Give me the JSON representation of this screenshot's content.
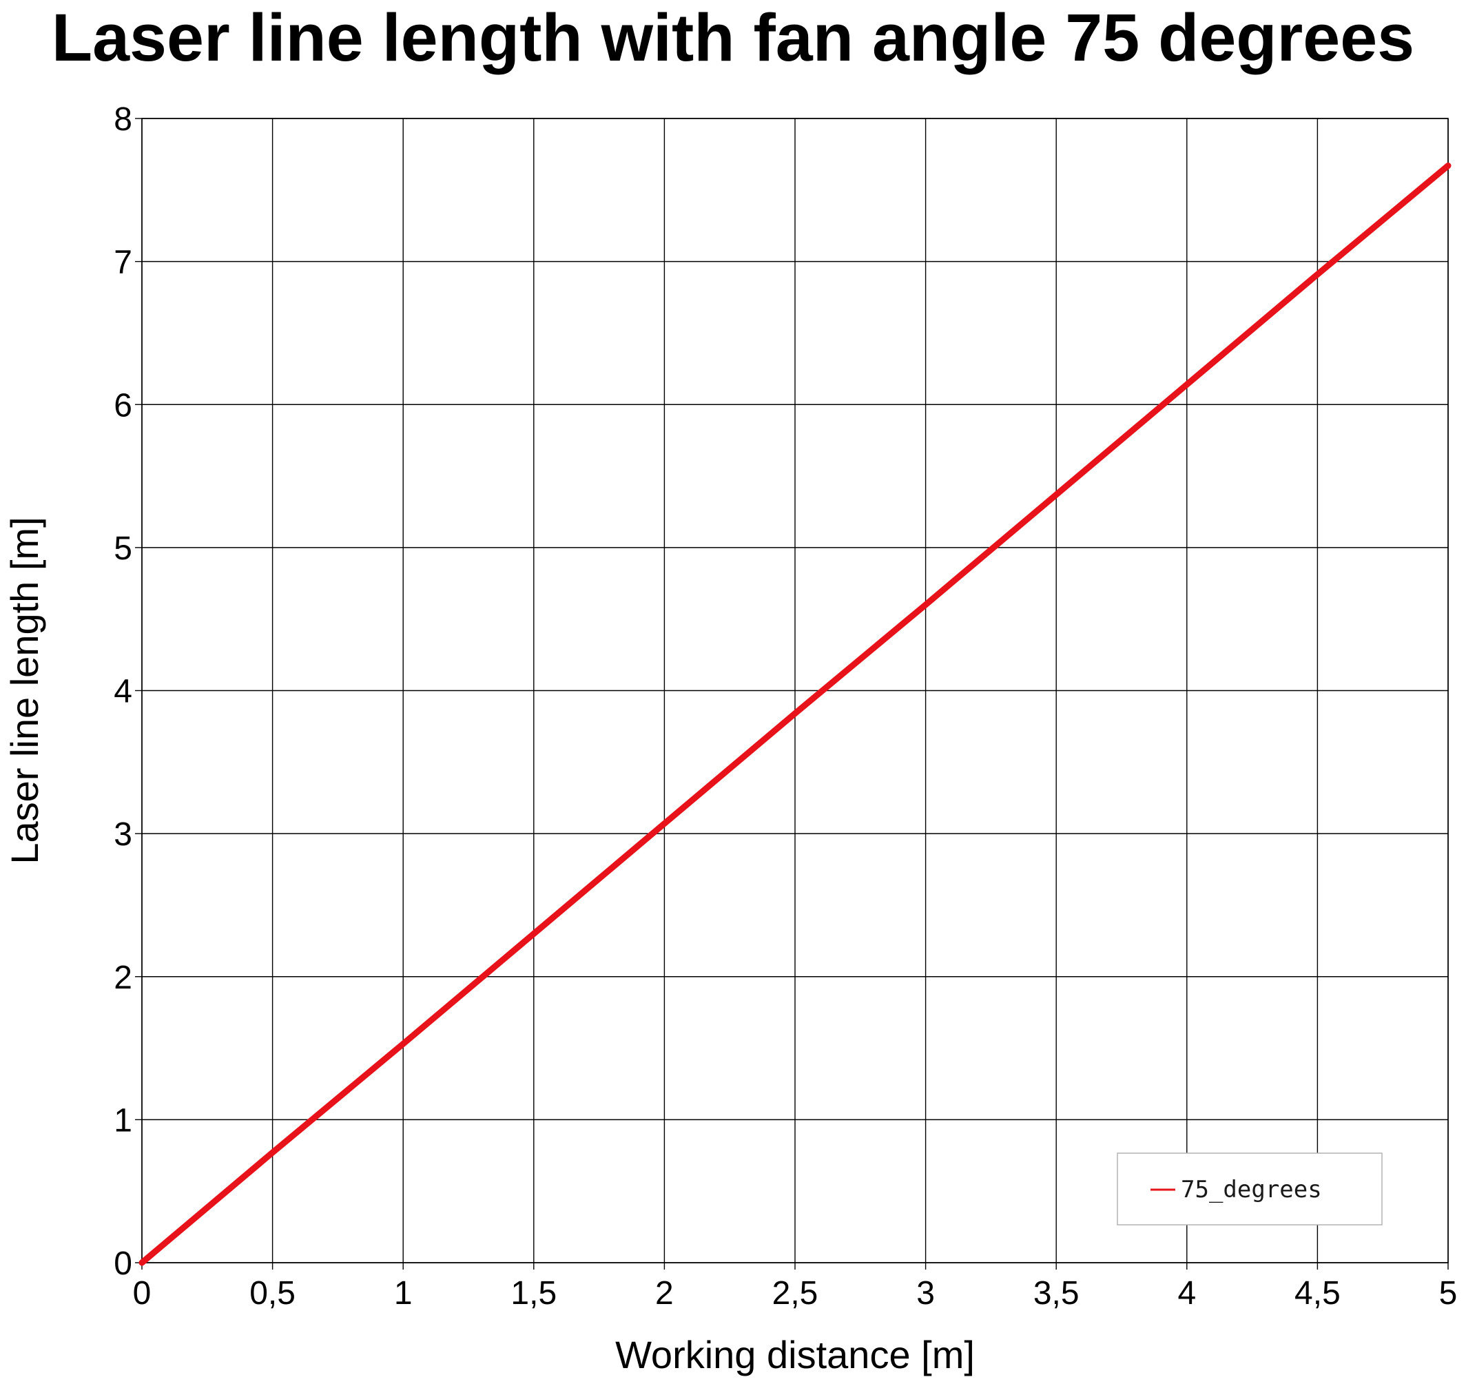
{
  "chart_data": {
    "type": "line",
    "title": "Laser line length with fan angle 75 degrees",
    "xlabel": "Working distance [m]",
    "ylabel": "Laser line length [m]",
    "xlim": [
      0,
      5
    ],
    "ylim": [
      0,
      8
    ],
    "x_ticks": [
      "0",
      "0,5",
      "1",
      "1,5",
      "2",
      "2,5",
      "3",
      "3,5",
      "4",
      "4,5",
      "5"
    ],
    "y_ticks": [
      "0",
      "1",
      "2",
      "3",
      "4",
      "5",
      "6",
      "7",
      "8"
    ],
    "grid": true,
    "legend_position": "bottom-right",
    "series": [
      {
        "name": "75_degrees",
        "color": "#e8131a",
        "x": [
          0,
          0.5,
          1,
          1.5,
          2,
          2.5,
          3,
          3.5,
          4,
          4.5,
          5
        ],
        "y": [
          0,
          0.77,
          1.53,
          2.3,
          3.07,
          3.84,
          4.6,
          5.37,
          6.14,
          6.91,
          7.67
        ]
      }
    ]
  }
}
